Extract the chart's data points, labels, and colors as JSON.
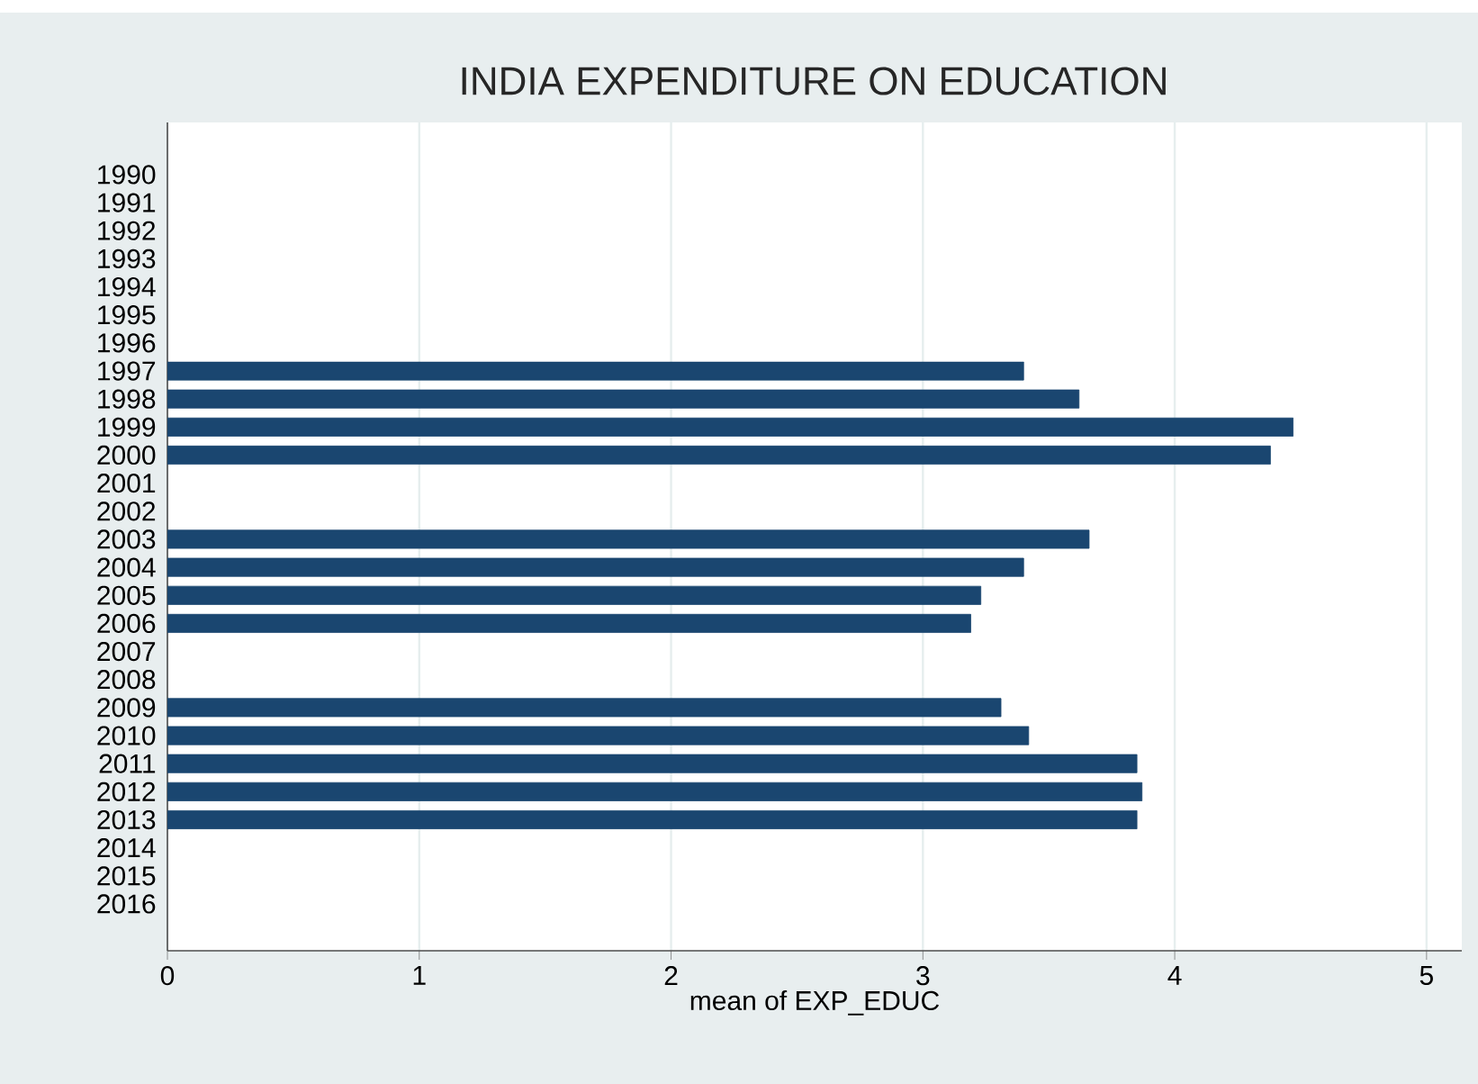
{
  "chart_data": {
    "type": "bar",
    "orientation": "horizontal",
    "title": "INDIA EXPENDITURE ON EDUCATION",
    "xlabel": "mean of EXP_EDUC",
    "categories": [
      "1990",
      "1991",
      "1992",
      "1993",
      "1994",
      "1995",
      "1996",
      "1997",
      "1998",
      "1999",
      "2000",
      "2001",
      "2002",
      "2003",
      "2004",
      "2005",
      "2006",
      "2007",
      "2008",
      "2009",
      "2010",
      "2011",
      "2012",
      "2013",
      "2014",
      "2015",
      "2016"
    ],
    "values": [
      null,
      null,
      null,
      null,
      null,
      null,
      null,
      3.4,
      3.62,
      4.47,
      4.38,
      null,
      null,
      3.66,
      3.4,
      3.23,
      3.19,
      null,
      null,
      3.31,
      3.42,
      3.85,
      3.87,
      3.85,
      null,
      null,
      null
    ],
    "color": "#1a4670",
    "xlim": [
      0,
      5.14
    ],
    "xticks": [
      0,
      1,
      2,
      3,
      4,
      5
    ],
    "grid": "x"
  }
}
